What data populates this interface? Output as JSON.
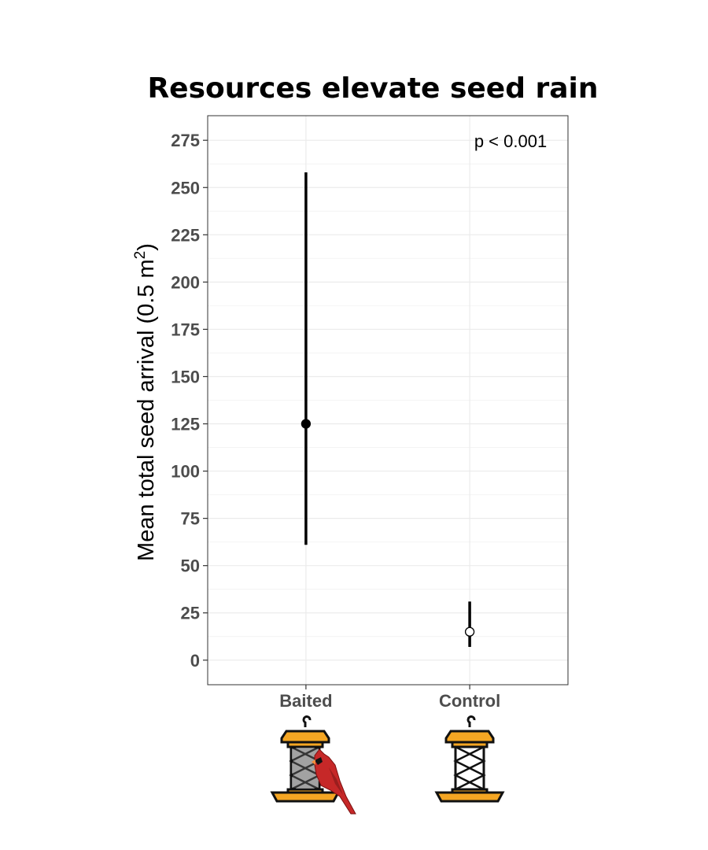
{
  "chart_data": {
    "type": "scatter",
    "title": "Resources elevate seed rain",
    "xlabel": "",
    "ylabel": "Mean total seed arrival (0.5 m",
    "ylabel_superscript": "2",
    "ylabel_close": ")",
    "categories": [
      "Baited",
      "Control"
    ],
    "points": [
      {
        "category": "Baited",
        "mean": 125,
        "lower": 61,
        "upper": 258,
        "fill": "#000000"
      },
      {
        "category": "Control",
        "mean": 15,
        "lower": 7,
        "upper": 31,
        "fill": "#ffffff"
      }
    ],
    "yticks": [
      0,
      25,
      50,
      75,
      100,
      125,
      150,
      175,
      200,
      225,
      250,
      275
    ],
    "ylim": [
      -13,
      288
    ],
    "grid": true,
    "annotation": "p < 0.001"
  },
  "icons": {
    "baited": "bird-feeder-with-cardinal-icon",
    "control": "empty-bird-feeder-icon"
  },
  "colors": {
    "feeder_yellow": "#f5a623",
    "cardinal_red": "#c62828",
    "grid": "#ebebeb",
    "tick_label": "#4d4d4d"
  }
}
